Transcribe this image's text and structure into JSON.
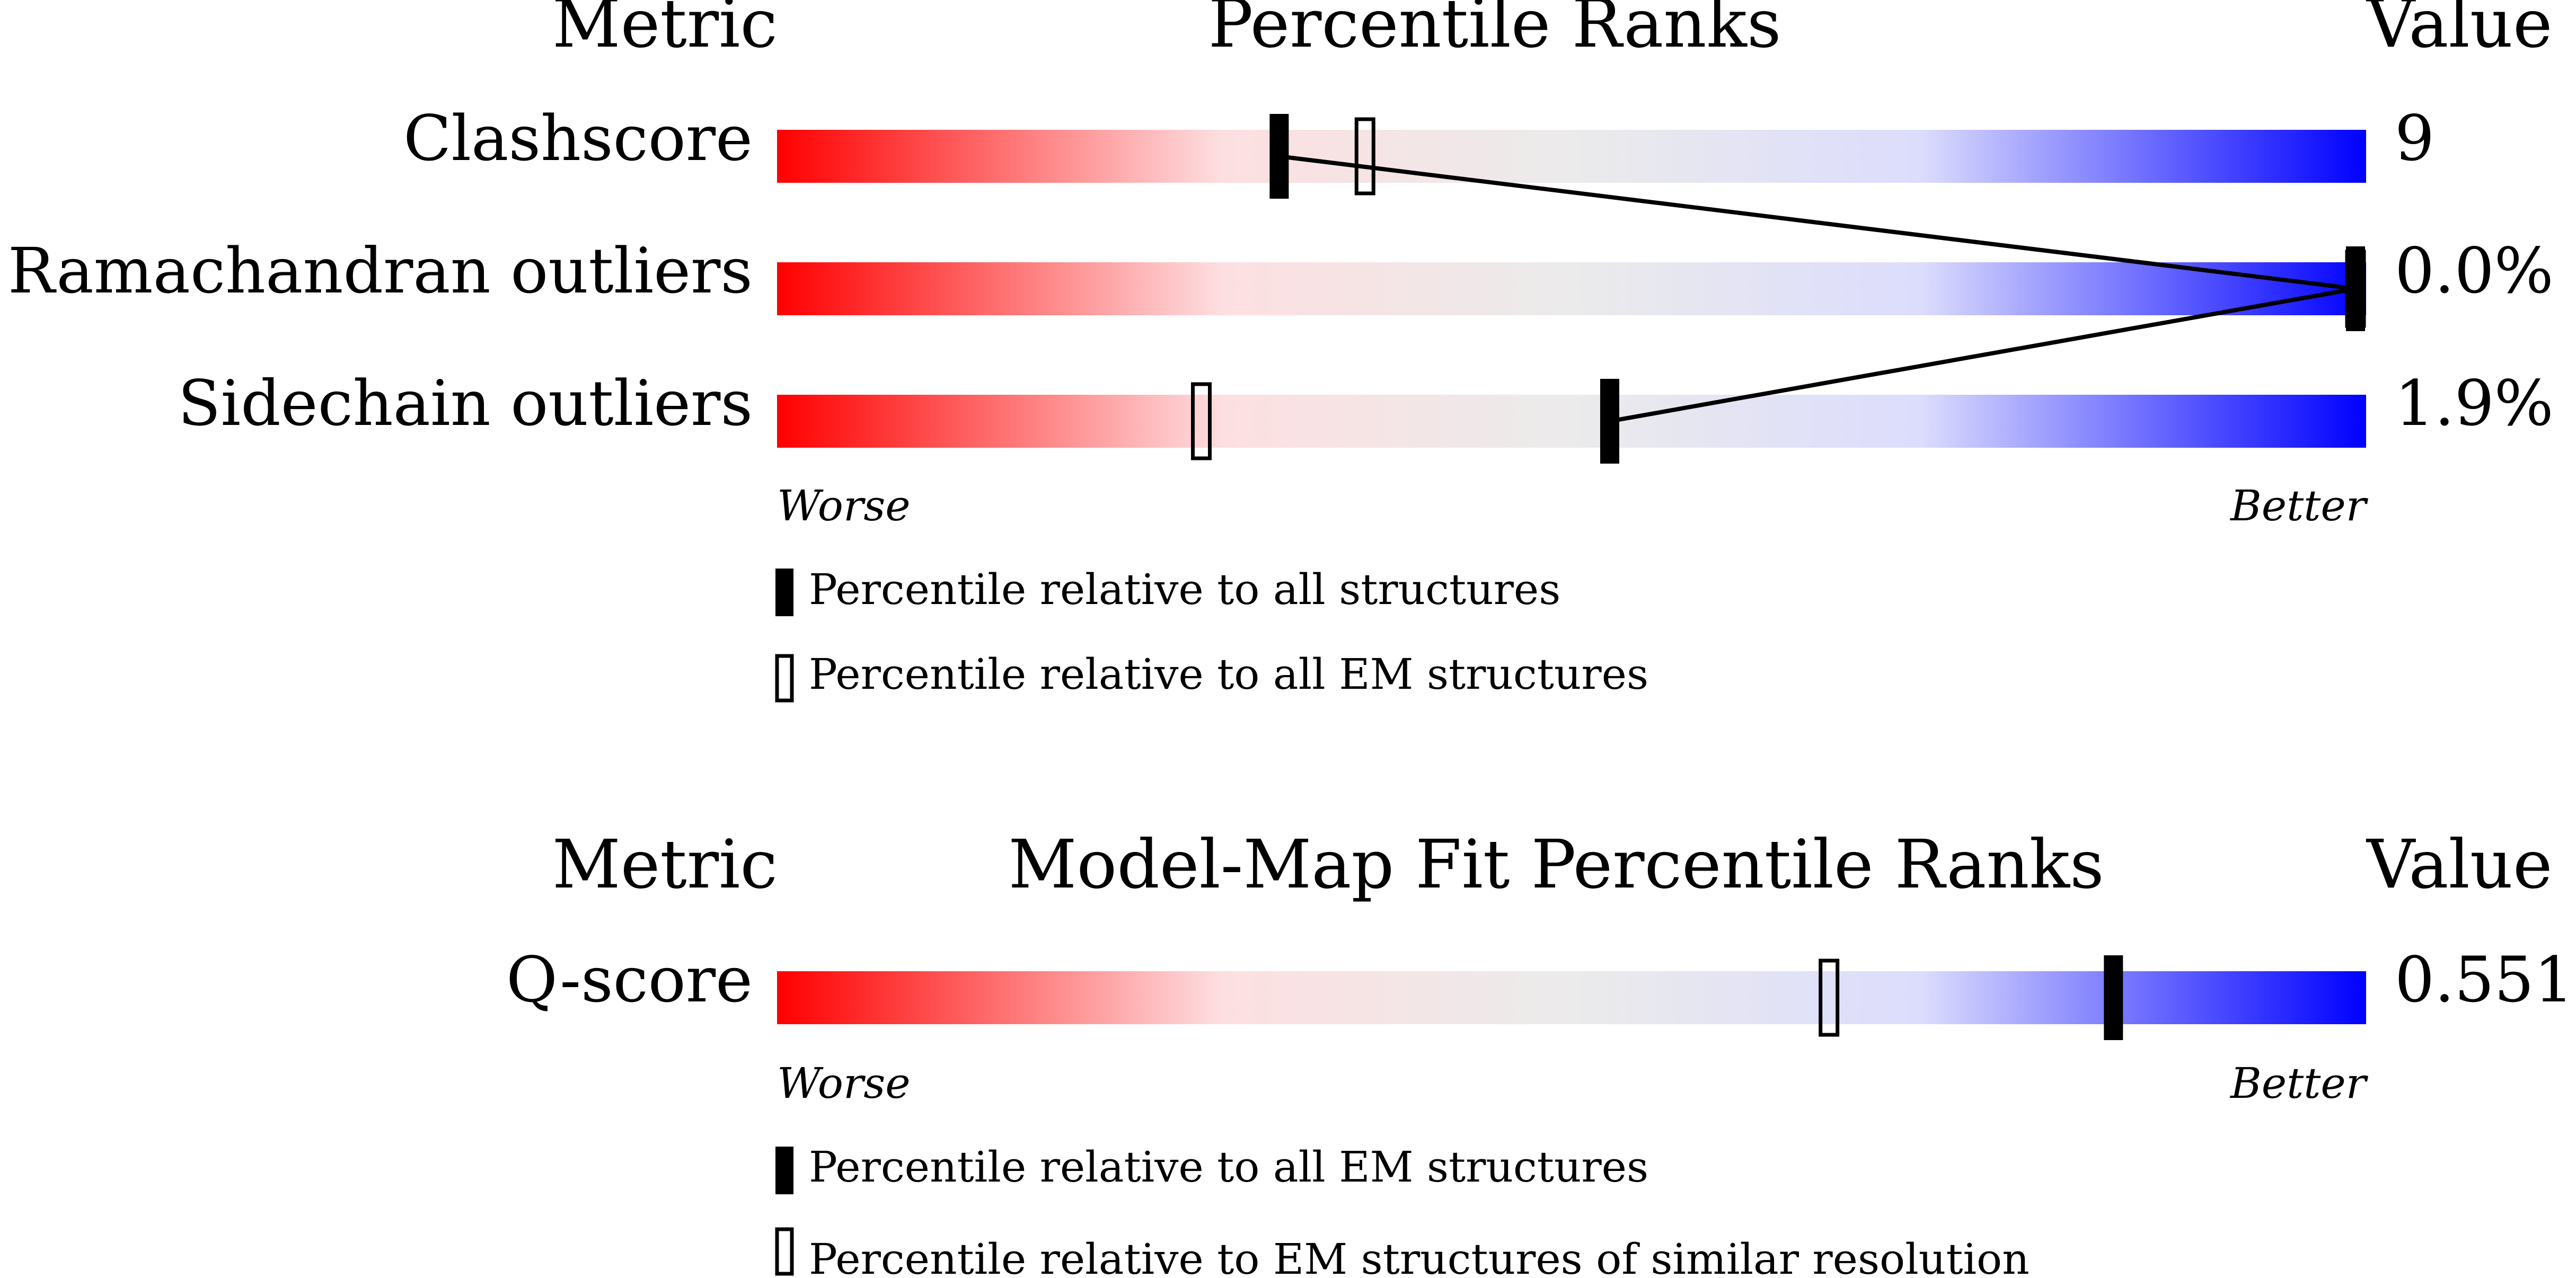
{
  "chart_data": [
    {
      "type": "percentile-bar",
      "header": {
        "metric": "Metric",
        "title": "Percentile Ranks",
        "value": "Value"
      },
      "xlim": [
        0,
        100
      ],
      "axis_labels": {
        "worse": "Worse",
        "better": "Better"
      },
      "legend": {
        "filled": "Percentile relative to all structures",
        "open": "Percentile relative to all EM structures"
      },
      "rows": [
        {
          "metric": "Clashscore",
          "value": "9",
          "filled_percentile": 31.6,
          "open_percentile": 37
        },
        {
          "metric": "Ramachandran outliers",
          "value": "0.0%",
          "filled_percentile": 100,
          "open_percentile": 100
        },
        {
          "metric": "Sidechain outliers",
          "value": "1.9%",
          "filled_percentile": 52.4,
          "open_percentile": 26.7
        }
      ]
    },
    {
      "type": "percentile-bar",
      "header": {
        "metric": "Metric",
        "title": "Model-Map Fit Percentile Ranks",
        "value": "Value"
      },
      "xlim": [
        0,
        100
      ],
      "axis_labels": {
        "worse": "Worse",
        "better": "Better"
      },
      "legend": {
        "filled": "Percentile relative to all EM structures",
        "open": "Percentile relative to EM structures of similar resolution"
      },
      "rows": [
        {
          "metric": "Q-score",
          "value": "0.551",
          "filled_percentile": 84.1,
          "open_percentile": 66.2
        }
      ]
    }
  ],
  "colors": {
    "worse": "#ff0000",
    "mid_red": "#fddfe1",
    "neutral": "#ebebeb",
    "mid_blue": "#dcdcfd",
    "better": "#0000ff",
    "marker": "#000000",
    "text": "#000000"
  }
}
